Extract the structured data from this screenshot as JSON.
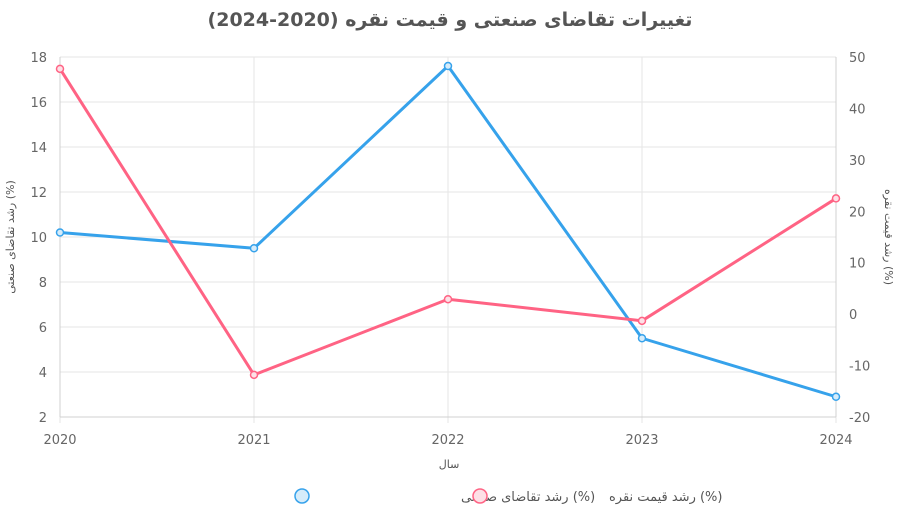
{
  "chart_data": {
    "type": "line",
    "title": "تغییرات تقاضای صنعتی و قیمت نقره (2020-2024)",
    "xlabel": "سال",
    "ylabel_left": "(%) رشد تقاضای صنعتی",
    "ylabel_right": "(%) رشد قیمت نقره",
    "x": [
      "2020",
      "2021",
      "2022",
      "2023",
      "2024"
    ],
    "ylim_left": [
      2,
      18
    ],
    "yticks_left": [
      2,
      4,
      6,
      8,
      10,
      12,
      14,
      16,
      18
    ],
    "ylim_right": [
      -20,
      50
    ],
    "yticks_right": [
      -20,
      -10,
      0,
      10,
      20,
      30,
      40,
      50
    ],
    "grid": true,
    "legend_position": "bottom",
    "series": [
      {
        "name": "(%) رشد تقاضای صنعتی",
        "axis": "left",
        "color": "#36a2eb",
        "fill": "#d6ecfa",
        "values": [
          10.2,
          9.5,
          17.6,
          5.5,
          2.9
        ]
      },
      {
        "name": "(%) رشد قیمت نقره",
        "axis": "right",
        "color": "#ff6384",
        "fill": "#fde0e6",
        "values": [
          47.7,
          -11.8,
          2.9,
          -1.3,
          22.5
        ]
      }
    ]
  }
}
